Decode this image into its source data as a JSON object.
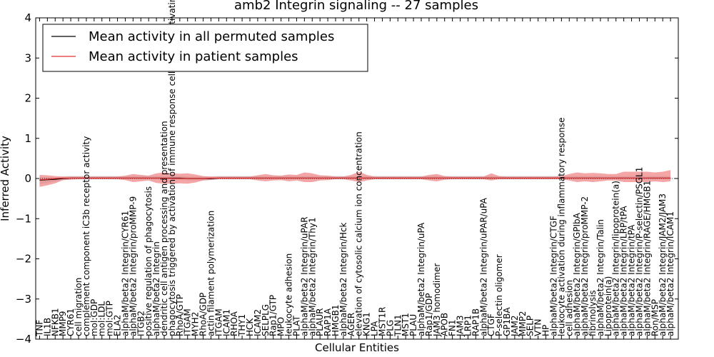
{
  "chart_data": {
    "type": "line",
    "title": "amb2 Integrin signaling -- 27 samples",
    "xlabel": "Cellular Entities",
    "ylabel": "Inferred Activity",
    "ylim": [
      -4,
      4
    ],
    "yticks": [
      -4,
      -3,
      -2,
      -1,
      0,
      1,
      2,
      3,
      4
    ],
    "ytick_labels": [
      "−4",
      "−3",
      "−2",
      "−1",
      "0",
      "1",
      "2",
      "3",
      "4"
    ],
    "grid": false,
    "legend_position": "top-left",
    "categories": [
      "TNF",
      "IL1B",
      "NFKB1",
      "MMP9",
      "CYR61",
      "cell migration",
      "complement component iC3b receptor activity",
      "mol:GDP",
      "mol:LDL",
      "mol:GTP",
      "ELA2",
      "alphaM/beta2 Integrin/CYR61",
      "alphaM/beta2 Integrin/proMMP-9",
      "ITGB2",
      "positive regulation of phagocytosis",
      "alphaM/beta2 Integrin",
      "dendritic cell antigen processing and presentation",
      "phagocytosis triggered by activation of immune response cell surface activating receptor",
      "RhoA/GTP",
      "ITGAM",
      "MYH2",
      "RhoA/GDP",
      "actin filament polymerization",
      "ITGAM",
      "ICAM1",
      "RHOA",
      "THY1",
      "HCK",
      "ICAM2",
      "SELPLG",
      "Rap1/GTP",
      "MPO",
      "leukocyte adhesion",
      "PLAT",
      "alphaM/beta2 Integrin/uPAR",
      "alphaM/beta2 Integrin/Thy1",
      "PLAUR",
      "RAP1A",
      "HMGB1",
      "alphaM/beta2 Integrin/Hck",
      "AGER",
      "elevation of cytosolic calcium ion concentration",
      "KNG1",
      "LPA",
      "MST1R",
      "PLG",
      "TLN1",
      "MST1",
      "PLAU",
      "alphaM/beta2 Integrin/uPA",
      "Rap1/GDP",
      "JAM3 homodimer",
      "APOB",
      "FN1",
      "JAM3",
      "LRP1",
      "RAP1B",
      "alphaM/beta2 Integrin/uPAR/uPA",
      "CTGF",
      "P-selectin oligomer",
      "GP1BA",
      "JAM2",
      "MMP2",
      "SELP",
      "VTN",
      "HP",
      "alphaM/beta2 Integrin/CTGF",
      "leukocyte activation during inflammatory response",
      "cell adhesion",
      "alphaM/beta2 Integrin/GPIbA",
      "alphaM/beta2 Integrin/proMMP-2",
      "fibrinolysis",
      "alphaM/beta2 Integrin/Talin",
      "Lipoprotein(a)",
      "alphaM/beta2 Integrin/lipoprotein(a)",
      "alphaM/beta2 Integrin/LRP/tPA",
      "alphaM/beta2 Integrin/tPA",
      "alphaM/beta2 Integrin/P-selectin/PSGL1",
      "alphaM/beta2 Integrin/RAGE/HMGB1",
      "Ron/MSP",
      "alphaM/beta2 Integrin/JAM2/JAM3",
      "alphaM/beta2 Integrin/ICAM1"
    ],
    "series": [
      {
        "name": "Mean activity in all permuted samples",
        "color": "#000000",
        "band_color": "#8ea3b5",
        "values": [
          -0.04,
          -0.03,
          -0.02,
          0.0,
          0.01,
          0.01,
          0.01,
          0.01,
          0.01,
          0.01,
          0.01,
          0.01,
          0.01,
          0.01,
          0.01,
          0.01,
          0.01,
          0.01,
          0.01,
          0.0,
          0.0,
          0.0,
          0.0,
          0.01,
          0.01,
          0.01,
          0.01,
          0.01,
          0.01,
          0.01,
          0.01,
          0.01,
          0.01,
          0.01,
          0.01,
          0.01,
          0.01,
          0.01,
          0.01,
          0.01,
          0.01,
          0.01,
          0.01,
          0.01,
          0.01,
          0.01,
          0.01,
          0.01,
          0.01,
          0.01,
          0.01,
          0.01,
          0.01,
          0.01,
          0.01,
          0.01,
          0.01,
          0.01,
          0.01,
          0.01,
          0.01,
          0.01,
          0.01,
          0.01,
          0.01,
          0.01,
          0.01,
          0.01,
          0.01,
          0.01,
          0.01,
          0.01,
          0.01,
          0.01,
          0.01,
          0.01,
          0.01,
          0.01,
          0.01,
          0.01,
          0.01,
          0.01
        ],
        "lower": [
          -0.1,
          -0.08,
          -0.05,
          -0.04,
          -0.03,
          -0.03,
          -0.03,
          -0.03,
          -0.03,
          -0.03,
          -0.03,
          -0.03,
          -0.03,
          -0.03,
          -0.03,
          -0.03,
          -0.03,
          -0.03,
          -0.04,
          -0.05,
          -0.05,
          -0.05,
          -0.04,
          -0.03,
          -0.03,
          -0.03,
          -0.03,
          -0.03,
          -0.03,
          -0.03,
          -0.03,
          -0.03,
          -0.03,
          -0.03,
          -0.03,
          -0.03,
          -0.03,
          -0.03,
          -0.03,
          -0.03,
          -0.03,
          -0.03,
          -0.03,
          -0.03,
          -0.03,
          -0.03,
          -0.03,
          -0.03,
          -0.03,
          -0.03,
          -0.03,
          -0.03,
          -0.03,
          -0.03,
          -0.03,
          -0.03,
          -0.03,
          -0.03,
          -0.03,
          -0.03,
          -0.03,
          -0.03,
          -0.03,
          -0.03,
          -0.03,
          -0.03,
          -0.03,
          -0.03,
          -0.03,
          -0.03,
          -0.03,
          -0.03,
          -0.03,
          -0.03,
          -0.03,
          -0.03,
          -0.03,
          -0.03,
          -0.03,
          -0.03,
          -0.03,
          -0.03
        ],
        "upper": [
          0.08,
          0.06,
          0.04,
          0.05,
          0.05,
          0.05,
          0.05,
          0.05,
          0.05,
          0.05,
          0.05,
          0.05,
          0.05,
          0.05,
          0.05,
          0.05,
          0.05,
          0.05,
          0.05,
          0.05,
          0.05,
          0.05,
          0.05,
          0.05,
          0.05,
          0.05,
          0.05,
          0.05,
          0.05,
          0.05,
          0.05,
          0.05,
          0.05,
          0.05,
          0.05,
          0.05,
          0.05,
          0.05,
          0.05,
          0.05,
          0.05,
          0.05,
          0.05,
          0.05,
          0.05,
          0.05,
          0.05,
          0.05,
          0.05,
          0.05,
          0.05,
          0.05,
          0.05,
          0.05,
          0.05,
          0.05,
          0.05,
          0.05,
          0.05,
          0.05,
          0.05,
          0.05,
          0.05,
          0.05,
          0.05,
          0.05,
          0.05,
          0.05,
          0.05,
          0.05,
          0.05,
          0.05,
          0.05,
          0.05,
          0.05,
          0.05,
          0.05,
          0.05,
          0.05,
          0.05,
          0.05,
          0.05
        ]
      },
      {
        "name": "Mean activity in patient samples",
        "color": "#e03030",
        "band_color": "#f08080",
        "values": [
          -0.03,
          -0.02,
          0.0,
          0.01,
          0.01,
          0.01,
          0.01,
          0.01,
          0.01,
          0.01,
          0.01,
          0.01,
          0.01,
          0.01,
          0.01,
          0.01,
          0.01,
          0.0,
          0.0,
          0.0,
          0.0,
          0.0,
          0.01,
          0.01,
          0.01,
          0.01,
          0.01,
          0.01,
          0.01,
          0.01,
          0.01,
          0.01,
          0.01,
          0.01,
          0.01,
          0.01,
          0.01,
          0.01,
          0.01,
          0.01,
          0.01,
          0.01,
          0.01,
          0.01,
          0.01,
          0.01,
          0.01,
          0.01,
          0.01,
          0.01,
          0.01,
          0.01,
          0.01,
          0.01,
          0.01,
          0.01,
          0.01,
          0.01,
          0.01,
          0.01,
          0.01,
          0.01,
          0.01,
          0.01,
          0.01,
          0.01,
          0.01,
          0.01,
          0.01,
          0.01,
          0.01,
          0.01,
          0.01,
          0.01,
          0.01,
          0.01,
          0.01,
          0.01,
          0.01,
          0.01,
          0.01,
          0.01
        ],
        "lower": [
          -0.18,
          -0.15,
          -0.12,
          -0.05,
          -0.04,
          -0.03,
          -0.03,
          -0.03,
          -0.03,
          -0.03,
          -0.03,
          -0.05,
          -0.1,
          -0.08,
          -0.06,
          -0.12,
          -0.14,
          -0.13,
          -0.12,
          -0.13,
          -0.1,
          -0.05,
          -0.04,
          -0.03,
          -0.03,
          -0.03,
          -0.03,
          -0.03,
          -0.06,
          -0.08,
          -0.06,
          -0.05,
          -0.08,
          -0.06,
          -0.1,
          -0.1,
          -0.06,
          -0.05,
          -0.03,
          -0.03,
          -0.06,
          -0.1,
          -0.06,
          -0.03,
          -0.03,
          -0.03,
          -0.03,
          -0.03,
          -0.03,
          -0.03,
          -0.06,
          -0.08,
          -0.04,
          -0.03,
          -0.03,
          -0.03,
          -0.03,
          -0.03,
          -0.06,
          -0.03,
          -0.03,
          -0.03,
          -0.03,
          -0.03,
          -0.03,
          -0.03,
          -0.03,
          -0.03,
          -0.06,
          -0.1,
          -0.08,
          -0.1,
          -0.08,
          -0.06,
          -0.06,
          -0.1,
          -0.1,
          -0.1,
          -0.1,
          -0.08,
          -0.1,
          -0.08
        ],
        "upper": [
          0.12,
          0.1,
          0.06,
          0.04,
          0.04,
          0.04,
          0.04,
          0.04,
          0.04,
          0.04,
          0.04,
          0.06,
          0.1,
          0.08,
          0.06,
          0.12,
          0.14,
          0.13,
          0.12,
          0.13,
          0.1,
          0.06,
          0.04,
          0.04,
          0.04,
          0.04,
          0.04,
          0.04,
          0.07,
          0.1,
          0.07,
          0.06,
          0.09,
          0.08,
          0.14,
          0.12,
          0.07,
          0.06,
          0.04,
          0.04,
          0.08,
          0.16,
          0.08,
          0.04,
          0.04,
          0.04,
          0.04,
          0.04,
          0.04,
          0.04,
          0.08,
          0.1,
          0.05,
          0.04,
          0.04,
          0.04,
          0.04,
          0.04,
          0.12,
          0.05,
          0.04,
          0.04,
          0.04,
          0.04,
          0.04,
          0.04,
          0.04,
          0.05,
          0.1,
          0.14,
          0.12,
          0.13,
          0.12,
          0.1,
          0.1,
          0.16,
          0.16,
          0.16,
          0.16,
          0.14,
          0.16,
          0.2
        ]
      }
    ]
  }
}
